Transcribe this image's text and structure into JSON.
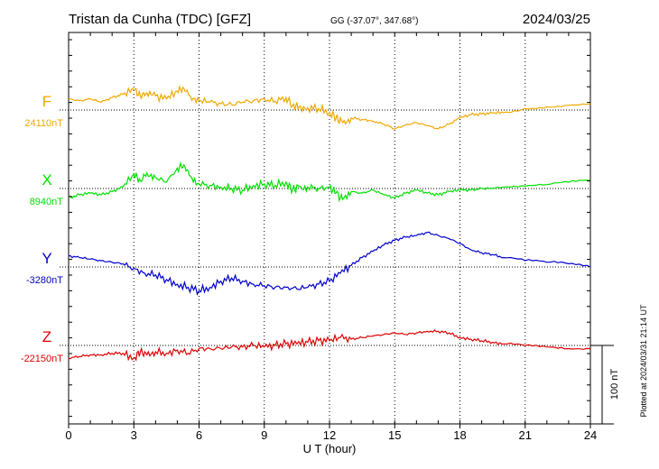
{
  "header": {
    "station": "Tristan da Cunha (TDC)  [GFZ]",
    "coords": "GG (-37.07°, 347.68°)",
    "date": "2024/03/25"
  },
  "plotted_note": "Plotted at 2024/03/31 21:14 UT",
  "colors": {
    "F": "#f0a800",
    "X": "#00e000",
    "Y": "#0000cc",
    "Z": "#e00000"
  },
  "chart_data": {
    "type": "line",
    "xlabel": "U T (hour)",
    "xlim": [
      0,
      24
    ],
    "x_ticks": [
      "0",
      "3",
      "6",
      "9",
      "12",
      "15",
      "18",
      "21",
      "24"
    ],
    "scale_bar": "100 nT",
    "baseline_unit_note": "each panel baseline drawn as dotted line; y in nT offset from baseline",
    "series": [
      {
        "name": "F",
        "baseline": "24110nT",
        "x": [
          0,
          0.5,
          1,
          1.5,
          2,
          2.5,
          3,
          3.3,
          3.6,
          4,
          4.5,
          5,
          5.3,
          5.6,
          6,
          6.5,
          7,
          7.5,
          8,
          8.5,
          9,
          9.5,
          10,
          10.3,
          10.6,
          11,
          11.5,
          12,
          12.3,
          12.6,
          13,
          13.5,
          14,
          14.5,
          15,
          15.5,
          16,
          16.5,
          17,
          17.5,
          18,
          18.5,
          19,
          19.5,
          20,
          21,
          22,
          23,
          24
        ],
        "y": [
          14,
          12,
          14,
          10,
          16,
          20,
          26,
          18,
          22,
          18,
          14,
          24,
          28,
          18,
          12,
          10,
          8,
          7,
          10,
          12,
          14,
          11,
          16,
          6,
          4,
          3,
          2,
          -3,
          -10,
          -16,
          -10,
          -12,
          -14,
          -18,
          -24,
          -19,
          -16,
          -20,
          -24,
          -18,
          -10,
          -6,
          -5,
          -4,
          -3,
          2,
          4,
          6,
          8
        ]
      },
      {
        "name": "X",
        "baseline": "8940nT",
        "x": [
          0,
          0.5,
          1,
          1.5,
          2,
          2.5,
          3,
          3.3,
          3.6,
          4,
          4.5,
          5,
          5.3,
          5.6,
          6,
          6.5,
          7,
          7.5,
          8,
          8.5,
          9,
          9.5,
          10,
          10.3,
          10.6,
          11,
          11.5,
          12,
          12.3,
          12.6,
          13,
          13.5,
          14,
          14.5,
          15,
          15.5,
          16,
          16.5,
          17,
          17.5,
          18,
          18.5,
          19,
          19.5,
          20,
          21,
          22,
          23,
          24
        ],
        "y": [
          -12,
          -8,
          -6,
          -8,
          -4,
          2,
          18,
          10,
          20,
          14,
          8,
          26,
          30,
          16,
          6,
          4,
          2,
          0,
          -2,
          4,
          6,
          4,
          8,
          -2,
          2,
          2,
          0,
          2,
          -6,
          -14,
          -4,
          -6,
          -2,
          -8,
          -12,
          -6,
          -2,
          -6,
          -8,
          -4,
          -2,
          -2,
          0,
          0,
          2,
          3,
          5,
          8,
          10
        ]
      },
      {
        "name": "Y",
        "baseline": "-3280nT",
        "x": [
          0,
          0.5,
          1,
          1.5,
          2,
          2.5,
          3,
          3.5,
          4,
          4.5,
          5,
          5.5,
          6,
          6.5,
          7,
          7.5,
          8,
          8.5,
          9,
          9.5,
          10,
          10.5,
          11,
          11.5,
          12,
          12.5,
          13,
          13.5,
          14,
          14.5,
          15,
          15.5,
          16,
          16.5,
          17,
          17.5,
          18,
          18.5,
          19,
          19.5,
          20,
          21,
          22,
          23,
          24
        ],
        "y": [
          14,
          12,
          10,
          8,
          6,
          4,
          -2,
          -8,
          -10,
          -16,
          -22,
          -26,
          -30,
          -26,
          -18,
          -14,
          -18,
          -22,
          -24,
          -26,
          -26,
          -28,
          -26,
          -22,
          -18,
          -8,
          2,
          12,
          20,
          28,
          34,
          38,
          40,
          44,
          40,
          36,
          30,
          22,
          18,
          16,
          12,
          8,
          6,
          4,
          0
        ]
      },
      {
        "name": "Z",
        "baseline": "-22150nT",
        "x": [
          0,
          0.5,
          1,
          1.5,
          2,
          2.5,
          3,
          3.3,
          3.6,
          4,
          4.5,
          5,
          5.5,
          6,
          6.5,
          7,
          7.5,
          8,
          8.5,
          9,
          9.5,
          10,
          10.5,
          11,
          11.5,
          12,
          12.5,
          13,
          13.5,
          14,
          14.5,
          15,
          15.5,
          16,
          16.5,
          17,
          17.5,
          18,
          18.5,
          19,
          19.5,
          20,
          21,
          22,
          23,
          24
        ],
        "y": [
          -16,
          -14,
          -12,
          -12,
          -10,
          -10,
          -16,
          -8,
          -12,
          -8,
          -10,
          -6,
          -10,
          -4,
          -4,
          -4,
          -2,
          -2,
          0,
          -2,
          0,
          2,
          2,
          4,
          6,
          6,
          10,
          8,
          10,
          12,
          14,
          16,
          14,
          16,
          18,
          18,
          16,
          10,
          8,
          6,
          4,
          2,
          0,
          -2,
          -4,
          -4
        ]
      }
    ]
  }
}
